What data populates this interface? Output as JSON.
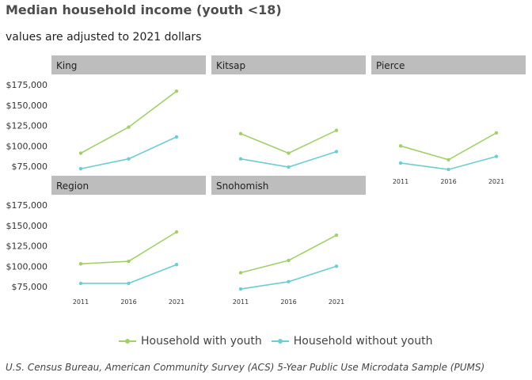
{
  "title": "Median household income (youth <18)",
  "subtitle": "values are adjusted to 2021 dollars",
  "caption": "U.S. Census Bureau, American Community Survey (ACS) 5-Year Public Use Microdata Sample (PUMS)",
  "colors": {
    "with_youth": "#a3cf6a",
    "without_youth": "#6dcdd3",
    "strip": "#bdbdbd"
  },
  "chart_data": {
    "type": "line",
    "x": [
      2011,
      2016,
      2021
    ],
    "x_tick_labels": [
      "2011",
      "2016",
      "2021"
    ],
    "y_tick_labels": [
      "$175,000",
      "$150,000",
      "$125,000",
      "$100,000",
      "$75,000"
    ],
    "y_ticks": [
      175000,
      150000,
      125000,
      100000,
      75000
    ],
    "ylim": [
      70000,
      177000
    ],
    "legend_position": "bottom",
    "series_names": [
      "Household with youth",
      "Household without youth"
    ],
    "panels": [
      {
        "name": "King",
        "with_youth": [
          91000,
          123000,
          167000
        ],
        "without_youth": [
          72000,
          84000,
          111000
        ]
      },
      {
        "name": "Kitsap",
        "with_youth": [
          115000,
          91000,
          119000
        ],
        "without_youth": [
          84000,
          74000,
          93000
        ]
      },
      {
        "name": "Pierce",
        "with_youth": [
          100000,
          83000,
          116000
        ],
        "without_youth": [
          79000,
          71000,
          87000
        ]
      },
      {
        "name": "Region",
        "with_youth": [
          103000,
          106000,
          142000
        ],
        "without_youth": [
          79000,
          79000,
          102000
        ]
      },
      {
        "name": "Snohomish",
        "with_youth": [
          92000,
          107000,
          138000
        ],
        "without_youth": [
          72000,
          81000,
          100000
        ]
      }
    ]
  }
}
